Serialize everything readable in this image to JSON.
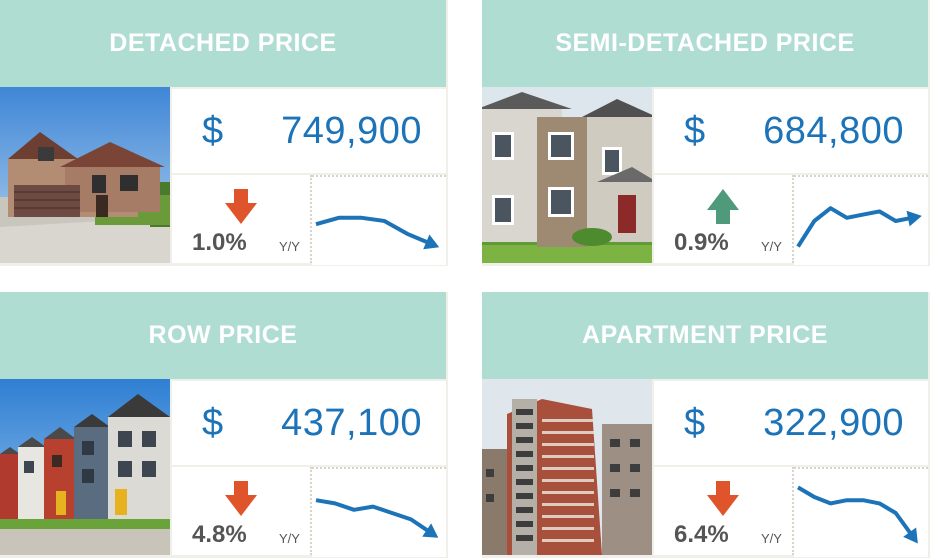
{
  "colors": {
    "header_bg": "#b0ddd2",
    "price_text": "#1c73b8",
    "down_arrow": "#e0542b",
    "up_arrow": "#4e9a7a",
    "spark_line": "#1c73b8"
  },
  "cards": [
    {
      "title": "DETACHED PRICE",
      "currency": "$",
      "price": "749,900",
      "change": "1.0%",
      "change_unit": "Y/Y",
      "direction": "down",
      "photo": "detached-house-photo",
      "trend": [
        0.55,
        0.45,
        0.45,
        0.5,
        0.7,
        0.85
      ]
    },
    {
      "title": "SEMI-DETACHED PRICE",
      "currency": "$",
      "price": "684,800",
      "change": "0.9%",
      "change_unit": "Y/Y",
      "direction": "up",
      "photo": "semi-detached-house-photo",
      "trend": [
        0.9,
        0.5,
        0.3,
        0.45,
        0.4,
        0.35,
        0.5,
        0.45
      ]
    },
    {
      "title": "ROW PRICE",
      "currency": "$",
      "price": "437,100",
      "change": "4.8%",
      "change_unit": "Y/Y",
      "direction": "down",
      "photo": "row-houses-photo",
      "trend": [
        0.3,
        0.35,
        0.45,
        0.4,
        0.5,
        0.6,
        0.8
      ]
    },
    {
      "title": "APARTMENT PRICE",
      "currency": "$",
      "price": "322,900",
      "change": "6.4%",
      "change_unit": "Y/Y",
      "direction": "down",
      "photo": "apartment-tower-photo",
      "trend": [
        0.1,
        0.25,
        0.35,
        0.3,
        0.3,
        0.35,
        0.5,
        0.85
      ]
    }
  ]
}
